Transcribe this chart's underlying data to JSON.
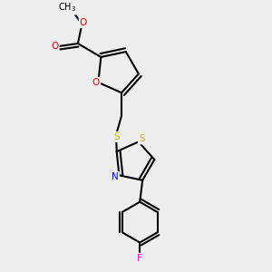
{
  "bg_color": "#eeeeee",
  "bond_color": "#000000",
  "bond_lw": 1.5,
  "atom_colors": {
    "O": "#ff0000",
    "N": "#0000ff",
    "S": "#bbbb00",
    "F": "#ff00ff",
    "C": "#000000"
  },
  "font_size": 7.5,
  "font_size_small": 6.5
}
